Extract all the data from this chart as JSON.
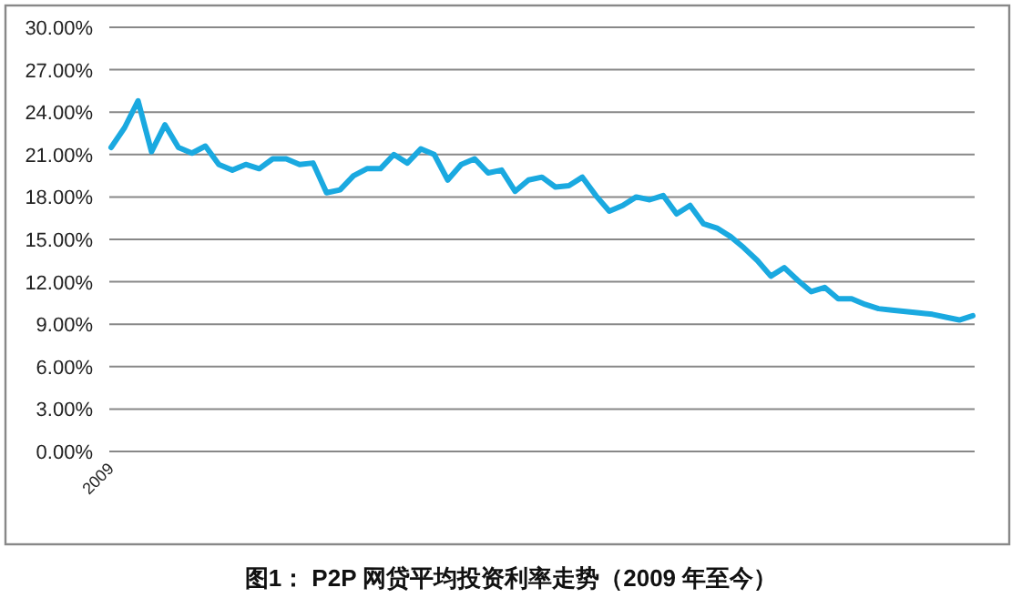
{
  "chart_data": {
    "type": "line",
    "title": "图1： P2P 网贷平均投资利率走势（2009 年至今）",
    "categories": [
      "2009",
      null,
      null,
      null,
      null,
      null,
      null,
      null,
      null,
      null,
      null,
      null,
      null,
      null,
      null,
      null,
      null,
      null,
      null,
      null,
      null,
      null,
      null,
      null,
      null,
      null,
      null,
      null,
      null,
      null,
      null,
      null,
      null,
      null,
      null,
      null,
      null,
      null,
      null,
      null,
      null,
      null,
      null,
      null,
      null,
      null,
      null,
      null,
      null,
      null,
      null,
      null,
      null,
      null,
      null,
      null,
      null,
      null,
      null,
      null,
      null,
      null,
      null,
      null,
      null
    ],
    "series": [
      {
        "color": "#1aa9e0",
        "values": [
          21.5,
          22.9,
          24.8,
          21.2,
          23.1,
          21.5,
          21.1,
          21.6,
          20.3,
          19.9,
          20.3,
          20.0,
          20.7,
          20.7,
          20.3,
          20.4,
          18.3,
          18.5,
          19.5,
          20.0,
          20.0,
          21.0,
          20.4,
          21.4,
          21.0,
          19.2,
          20.3,
          20.7,
          19.7,
          19.9,
          18.4,
          19.2,
          19.4,
          18.7,
          18.8,
          19.4,
          18.1,
          17.0,
          17.4,
          18.0,
          17.8,
          18.1,
          16.8,
          17.4,
          16.1,
          15.8,
          15.2,
          14.4,
          13.5,
          12.4,
          13.0,
          12.1,
          11.3,
          11.6,
          10.8,
          10.8,
          10.4,
          10.1,
          10.0,
          9.9,
          9.8,
          9.7,
          9.5,
          9.3,
          9.6
        ]
      }
    ],
    "ylim": [
      0,
      30
    ],
    "yticks": [
      {
        "value": 0,
        "label": "0.00%"
      },
      {
        "value": 3,
        "label": "3.00%"
      },
      {
        "value": 6,
        "label": "6.00%"
      },
      {
        "value": 9,
        "label": "9.00%"
      },
      {
        "value": 12,
        "label": "12.00%"
      },
      {
        "value": 15,
        "label": "15.00%"
      },
      {
        "value": 18,
        "label": "18.00%"
      },
      {
        "value": 21,
        "label": "21.00%"
      },
      {
        "value": 24,
        "label": "24.00%"
      },
      {
        "value": 27,
        "label": "27.00%"
      },
      {
        "value": 30,
        "label": "30.00%"
      }
    ],
    "grid": "y"
  }
}
